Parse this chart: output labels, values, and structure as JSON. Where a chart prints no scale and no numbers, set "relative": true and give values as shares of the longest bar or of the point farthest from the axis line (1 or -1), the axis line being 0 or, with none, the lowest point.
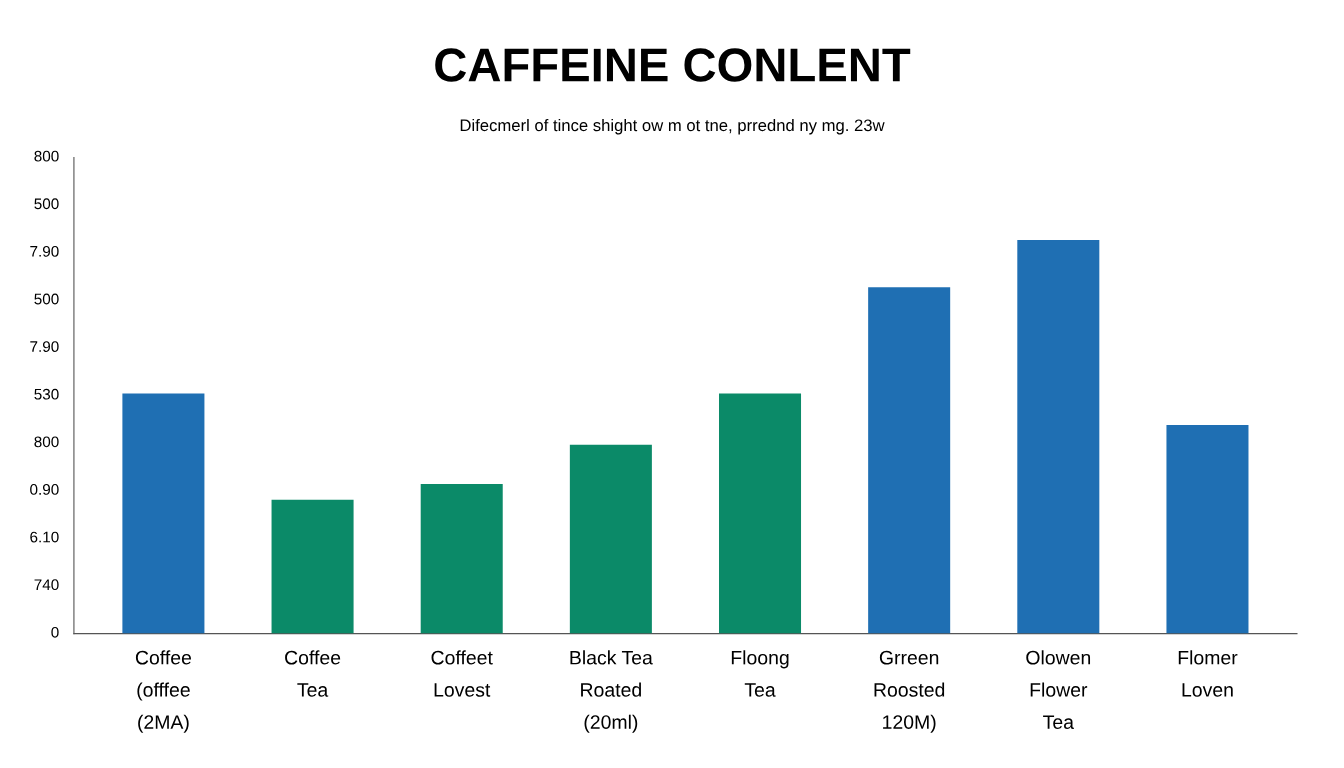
{
  "chart_data": {
    "type": "bar",
    "title": "CAFFEINE CONLENT",
    "subtitle": "Difecmerl of tince shight ow m ot tne, prrednd ny mg. 23w",
    "categories": [
      "Coffee\n(offfee\n(2MA)",
      "Coffee\nTea",
      "Coffeet\nLovest",
      "Black Tea\nRoated\n(20ml)",
      "Floong\nTea",
      "Grreen\nRoosted\n120M)",
      "Olowen\nFlower\nTea",
      "Flomer\nLoven"
    ],
    "values": [
      0.61,
      0.34,
      0.38,
      0.48,
      0.61,
      0.88,
      1,
      0.53
    ],
    "colors": [
      "#1f6fb3",
      "#0b8a68",
      "#0b8a68",
      "#0b8a68",
      "#0b8a68",
      "#1f6fb3",
      "#1f6fb3",
      "#1f6fb3"
    ],
    "relative": true,
    "annotations": [
      "800",
      "500",
      "7.90",
      "500",
      "7.90",
      "530",
      "800",
      "0.90",
      "6.10",
      "740",
      "0"
    ]
  }
}
